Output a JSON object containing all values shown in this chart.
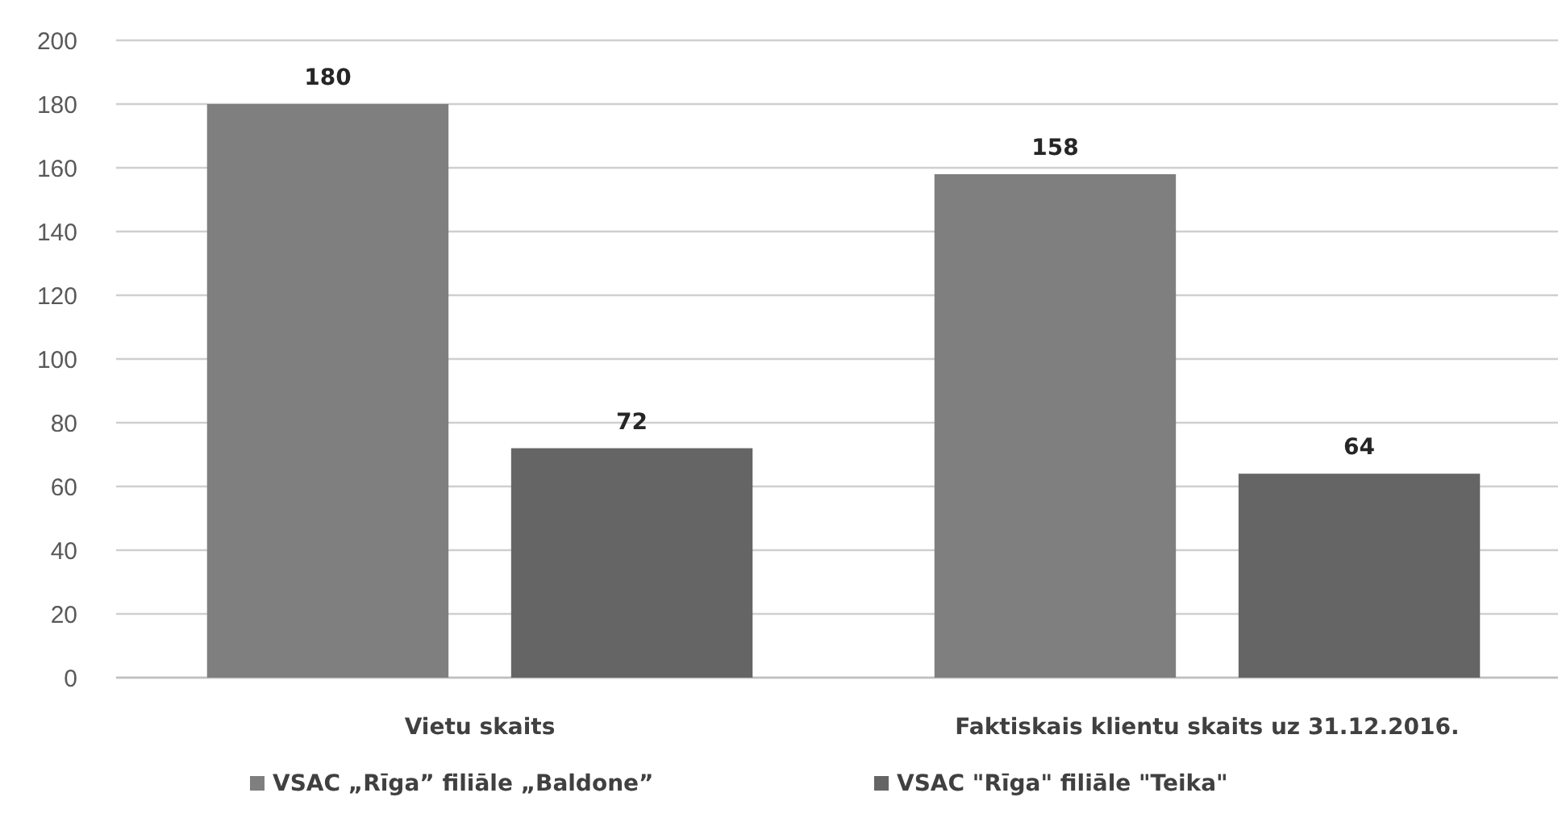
{
  "chart_data": {
    "type": "bar",
    "categories": [
      "Vietu skaits",
      "Faktiskais klientu skaits uz 31.12.2016."
    ],
    "series": [
      {
        "name": "VSAC „Rīga” filiāle „Baldone”",
        "color": "#7f7f7f",
        "values": [
          180,
          158
        ]
      },
      {
        "name": "VSAC \"Rīga\" filiāle \"Teika\"",
        "color": "#656565",
        "values": [
          72,
          64
        ]
      }
    ],
    "ylim": [
      0,
      200
    ],
    "yticks": [
      0,
      20,
      40,
      60,
      80,
      100,
      120,
      140,
      160,
      180,
      200
    ],
    "grid": "y",
    "legend": "bottom",
    "data_labels": true
  }
}
